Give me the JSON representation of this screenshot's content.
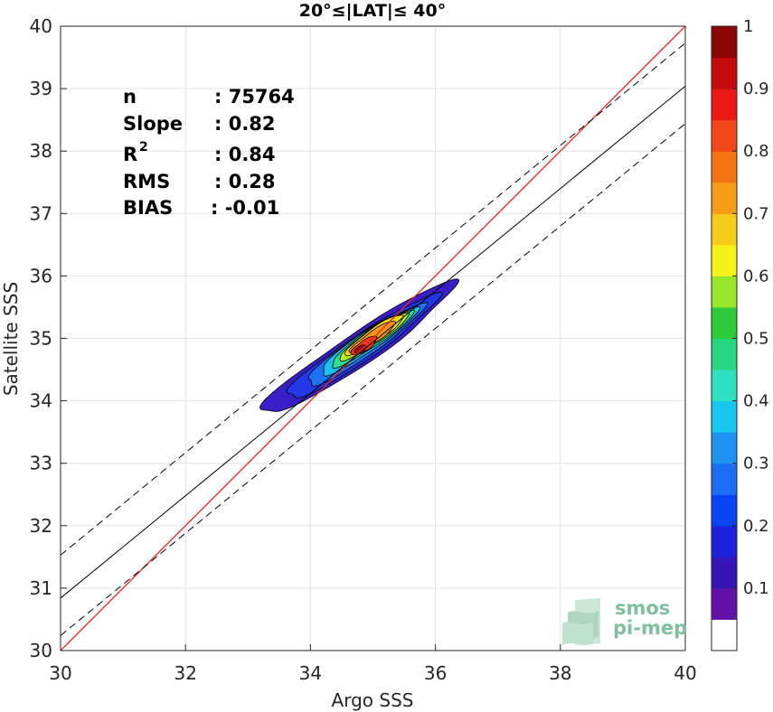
{
  "chart_data": {
    "type": "contour",
    "title": "20°≤|LAT|≤ 40°",
    "xlabel": "Argo SSS",
    "ylabel": "Satellite SSS",
    "xlim": [
      30,
      40
    ],
    "ylim": [
      30,
      40
    ],
    "xticks": [
      30,
      32,
      34,
      36,
      38,
      40
    ],
    "yticks": [
      30,
      31,
      32,
      33,
      34,
      35,
      36,
      37,
      38,
      39,
      40
    ],
    "grid": true,
    "stats": {
      "n_label": "n",
      "n_value": ": 75764",
      "slope_label": "Slope",
      "slope_value": ": 0.82",
      "r2_label": "R",
      "r2_sup": "2",
      "r2_value": ": 0.84",
      "rms_label": "RMS",
      "rms_value": ": 0.28",
      "bias_label": "BIAS",
      "bias_value": ": -0.01"
    },
    "lines": {
      "identity": {
        "color": "#e8261d",
        "x": [
          30,
          40
        ],
        "y": [
          30,
          40
        ]
      },
      "fit": {
        "slope": 0.82,
        "intercept": 6.24,
        "style": "solid"
      },
      "fit_upper": {
        "slope": 0.82,
        "intercept": 6.93,
        "style": "dashed"
      },
      "fit_lower": {
        "slope": 0.82,
        "intercept": 5.64,
        "style": "dashed"
      }
    },
    "density_peak": {
      "x": 34.8,
      "y": 34.82
    },
    "contour_levels": [
      {
        "level": 0.05,
        "color": "#3a1fc8",
        "cx": 34.75,
        "cy": 34.82,
        "major": 1.85,
        "minor": 0.26,
        "angle_deg": 34
      },
      {
        "level": 0.15,
        "color": "#2338e6",
        "cx": 34.8,
        "cy": 34.84,
        "major": 1.45,
        "minor": 0.21,
        "angle_deg": 34
      },
      {
        "level": 0.25,
        "color": "#1d72f5",
        "cx": 34.85,
        "cy": 34.88,
        "major": 1.12,
        "minor": 0.18,
        "angle_deg": 34
      },
      {
        "level": 0.35,
        "color": "#1cc0ef",
        "cx": 34.92,
        "cy": 34.95,
        "major": 0.92,
        "minor": 0.16,
        "angle_deg": 34
      },
      {
        "level": 0.45,
        "color": "#2fdc8e",
        "cx": 34.98,
        "cy": 35.0,
        "major": 0.78,
        "minor": 0.14,
        "angle_deg": 34
      },
      {
        "level": 0.55,
        "color": "#b6ea28",
        "cx": 35.02,
        "cy": 35.04,
        "major": 0.66,
        "minor": 0.12,
        "angle_deg": 34
      },
      {
        "level": 0.65,
        "color": "#f7dc12",
        "cx": 35.03,
        "cy": 35.06,
        "major": 0.56,
        "minor": 0.105,
        "angle_deg": 34
      },
      {
        "level": 0.75,
        "color": "#f7951a",
        "cx": 35.0,
        "cy": 35.02,
        "major": 0.44,
        "minor": 0.09,
        "angle_deg": 34
      },
      {
        "level": 0.85,
        "color": "#ef3b1b",
        "cx": 34.86,
        "cy": 34.88,
        "major": 0.24,
        "minor": 0.08,
        "angle_deg": 34
      },
      {
        "level": 0.95,
        "color": "#a30d0d",
        "cx": 34.8,
        "cy": 34.82,
        "major": 0.1,
        "minor": 0.055,
        "angle_deg": 34
      }
    ],
    "colorbar": {
      "range": [
        0,
        1
      ],
      "ticks": [
        "0.1",
        "0.2",
        "0.3",
        "0.4",
        "0.5",
        "0.6",
        "0.7",
        "0.8",
        "0.9",
        "1"
      ],
      "tick_values": [
        0.1,
        0.2,
        0.3,
        0.4,
        0.5,
        0.6,
        0.7,
        0.8,
        0.9,
        1.0
      ],
      "colors": [
        "#ffffff",
        "#6310a6",
        "#3614b5",
        "#1d22dc",
        "#0a44f5",
        "#1d6ef5",
        "#1d94f3",
        "#18c7f0",
        "#2ce0c1",
        "#27d883",
        "#2ecb3a",
        "#97e629",
        "#f2f31a",
        "#f4cc19",
        "#f59d17",
        "#f47313",
        "#f1471a",
        "#ec1813",
        "#c50c0c",
        "#8a0605"
      ]
    },
    "logo": {
      "line1": "smos",
      "line2": "pi-mep"
    }
  }
}
